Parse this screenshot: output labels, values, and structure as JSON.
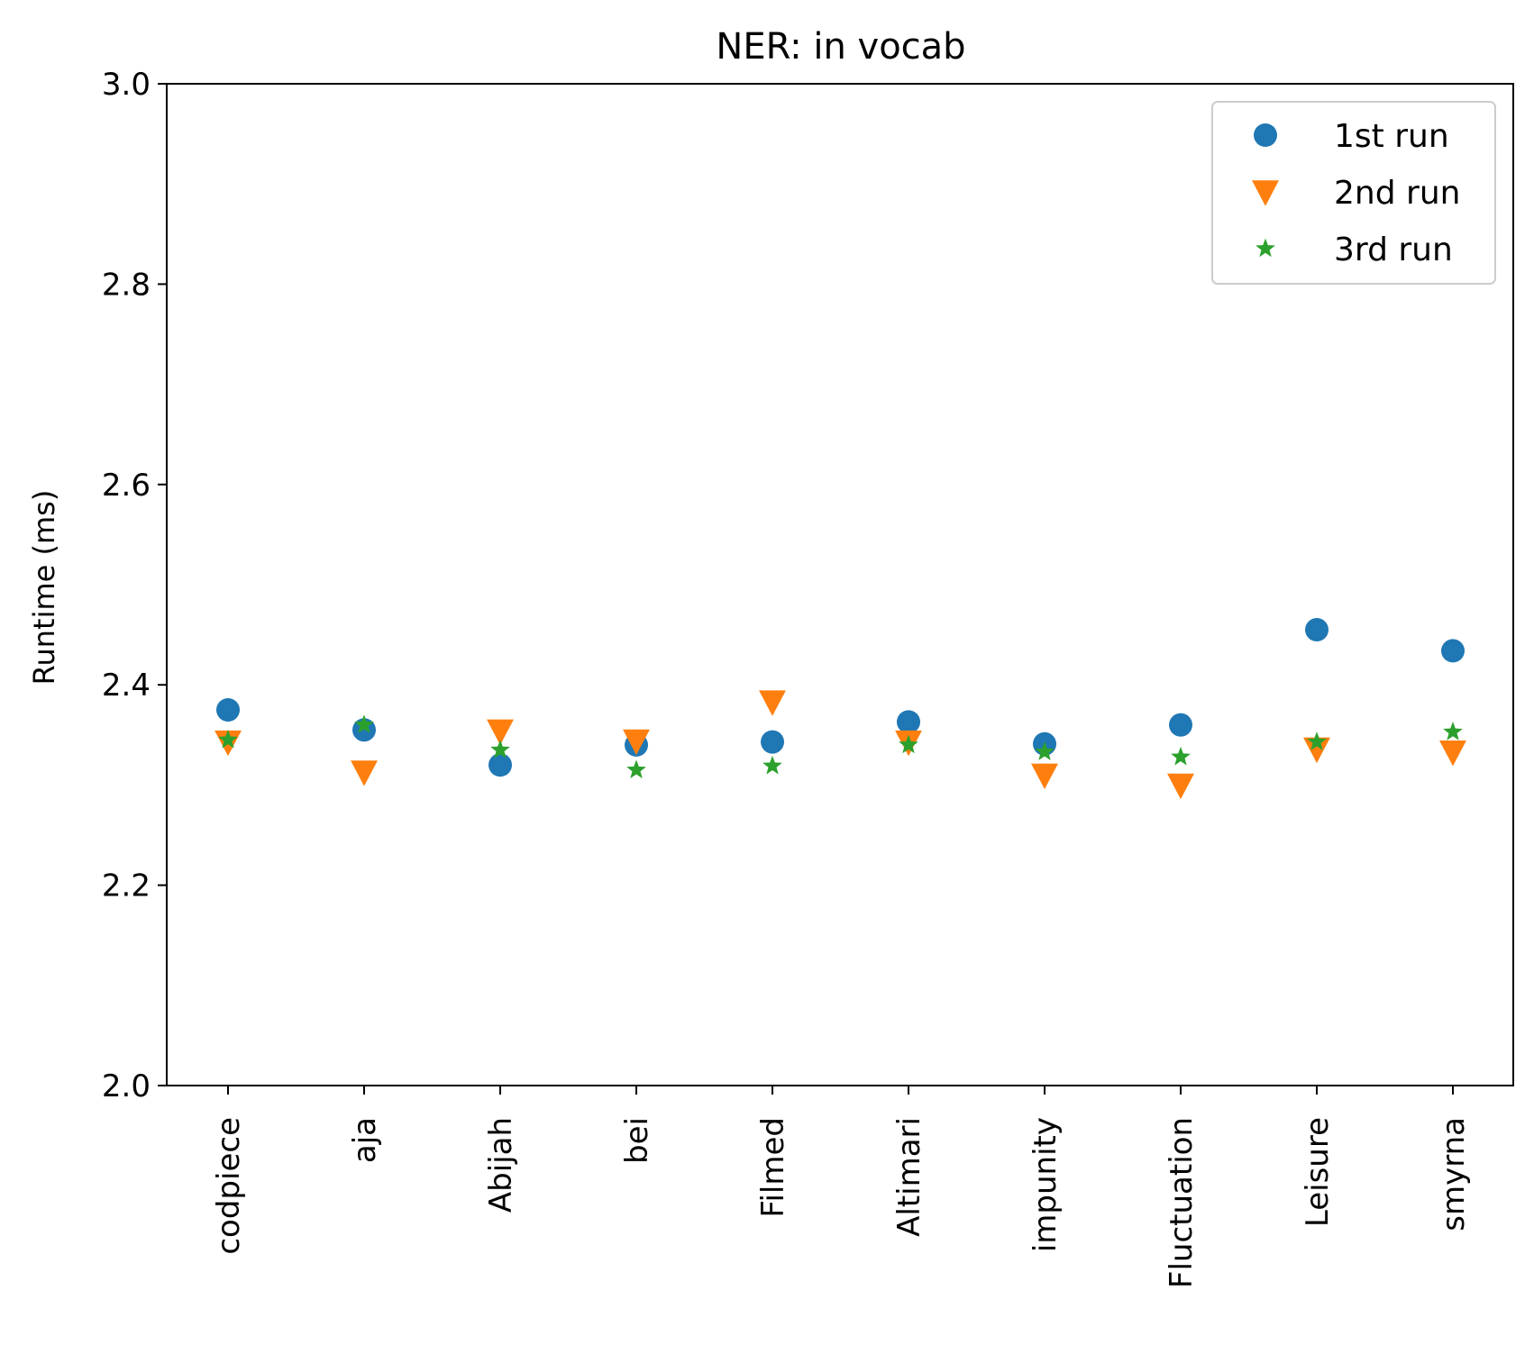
{
  "chart_data": {
    "type": "scatter",
    "title": "NER: in vocab",
    "xlabel": "",
    "ylabel": "Runtime (ms)",
    "ylim": [
      2.0,
      3.0
    ],
    "yticks": [
      "2.0",
      "2.2",
      "2.4",
      "2.6",
      "2.8",
      "3.0"
    ],
    "categories": [
      "codpiece",
      "aja",
      "Abijah",
      "bei",
      "Filmed",
      "Altimari",
      "impunity",
      "Fluctuation",
      "Leisure",
      "smyrna"
    ],
    "grid": false,
    "legend_position": "top-right",
    "series": [
      {
        "name": "1st run",
        "marker": "circle",
        "color": "#1f77b4",
        "values": [
          2.375,
          2.355,
          2.32,
          2.34,
          2.343,
          2.363,
          2.341,
          2.36,
          2.455,
          2.434
        ]
      },
      {
        "name": "2nd run",
        "marker": "triangle-down",
        "color": "#ff7f0e",
        "values": [
          2.343,
          2.313,
          2.354,
          2.344,
          2.383,
          2.343,
          2.31,
          2.3,
          2.336,
          2.333
        ]
      },
      {
        "name": "3rd run",
        "marker": "star",
        "color": "#2ca02c",
        "values": [
          2.345,
          2.36,
          2.335,
          2.315,
          2.319,
          2.34,
          2.333,
          2.328,
          2.343,
          2.353
        ]
      }
    ]
  }
}
